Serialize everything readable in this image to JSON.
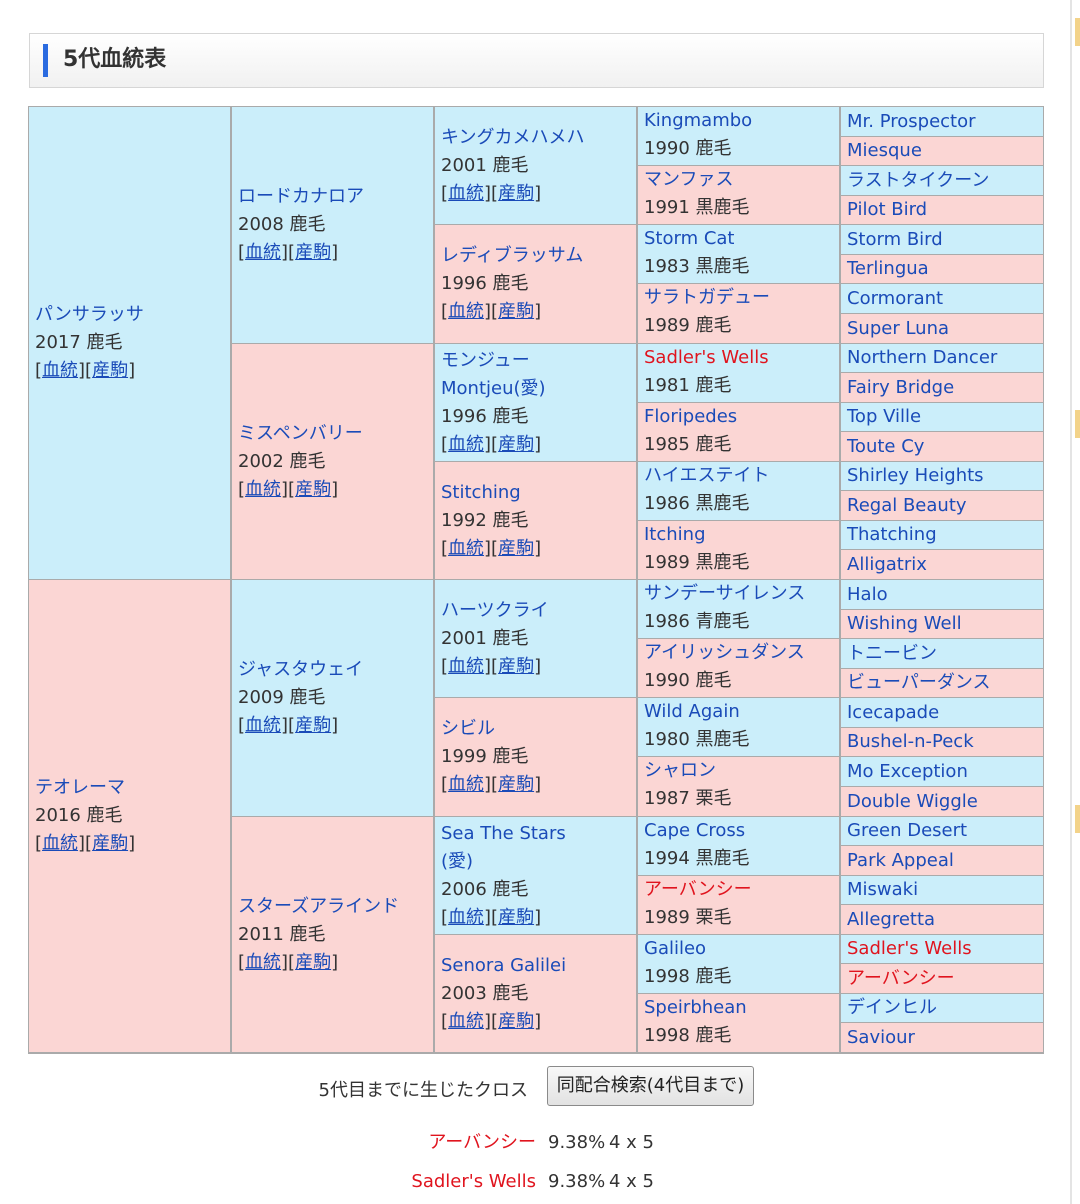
{
  "section": {
    "title": "5代血統表"
  },
  "links": {
    "pedigree": "血統",
    "offspring": "産駒"
  },
  "pedigree": {
    "gen1": [
      {
        "name": "パンサラッサ",
        "year": "2017",
        "color": "鹿毛",
        "sex": "m"
      },
      {
        "name": "テオレーマ",
        "year": "2016",
        "color": "鹿毛",
        "sex": "f"
      }
    ],
    "gen2": [
      {
        "name": "ロードカナロア",
        "year": "2008",
        "color": "鹿毛",
        "sex": "m"
      },
      {
        "name": "ミスペンバリー",
        "year": "2002",
        "color": "鹿毛",
        "sex": "f"
      },
      {
        "name": "ジャスタウェイ",
        "year": "2009",
        "color": "鹿毛",
        "sex": "m"
      },
      {
        "name": "スターズアラインド",
        "year": "2011",
        "color": "鹿毛",
        "sex": "f"
      }
    ],
    "gen3": [
      {
        "name": "キングカメハメハ",
        "year": "2001",
        "color": "鹿毛",
        "sex": "m"
      },
      {
        "name": "レディブラッサム",
        "year": "1996",
        "color": "鹿毛",
        "sex": "f"
      },
      {
        "name": "モンジュー",
        "name2": "Montjeu(愛)",
        "year": "1996",
        "color": "鹿毛",
        "sex": "m"
      },
      {
        "name": "Stitching",
        "year": "1992",
        "color": "鹿毛",
        "sex": "f"
      },
      {
        "name": "ハーツクライ",
        "year": "2001",
        "color": "鹿毛",
        "sex": "m"
      },
      {
        "name": "シビル",
        "year": "1999",
        "color": "鹿毛",
        "sex": "f"
      },
      {
        "name": "Sea The Stars",
        "name2": "(愛)",
        "year": "2006",
        "color": "鹿毛",
        "sex": "m"
      },
      {
        "name": "Senora Galilei",
        "year": "2003",
        "color": "鹿毛",
        "sex": "f"
      }
    ],
    "gen4": [
      {
        "name": "Kingmambo",
        "year": "1990",
        "color": "鹿毛",
        "sex": "m"
      },
      {
        "name": "マンファス",
        "year": "1991",
        "color": "黒鹿毛",
        "sex": "f"
      },
      {
        "name": "Storm Cat",
        "year": "1983",
        "color": "黒鹿毛",
        "sex": "m"
      },
      {
        "name": "サラトガデュー",
        "year": "1989",
        "color": "鹿毛",
        "sex": "f"
      },
      {
        "name": "Sadler's Wells",
        "year": "1981",
        "color": "鹿毛",
        "sex": "m",
        "cross": true
      },
      {
        "name": "Floripedes",
        "year": "1985",
        "color": "鹿毛",
        "sex": "f"
      },
      {
        "name": "ハイエステイト",
        "year": "1986",
        "color": "黒鹿毛",
        "sex": "m"
      },
      {
        "name": "Itching",
        "year": "1989",
        "color": "黒鹿毛",
        "sex": "f"
      },
      {
        "name": "サンデーサイレンス",
        "year": "1986",
        "color": "青鹿毛",
        "sex": "m"
      },
      {
        "name": "アイリッシュダンス",
        "year": "1990",
        "color": "鹿毛",
        "sex": "f"
      },
      {
        "name": "Wild Again",
        "year": "1980",
        "color": "黒鹿毛",
        "sex": "m"
      },
      {
        "name": "シャロン",
        "year": "1987",
        "color": "栗毛",
        "sex": "f"
      },
      {
        "name": "Cape Cross",
        "year": "1994",
        "color": "黒鹿毛",
        "sex": "m"
      },
      {
        "name": "アーバンシー",
        "year": "1989",
        "color": "栗毛",
        "sex": "f",
        "cross": true
      },
      {
        "name": "Galileo",
        "year": "1998",
        "color": "鹿毛",
        "sex": "m"
      },
      {
        "name": "Speirbhean",
        "year": "1998",
        "color": "鹿毛",
        "sex": "f"
      }
    ],
    "gen5": [
      {
        "name": "Mr. Prospector",
        "sex": "m"
      },
      {
        "name": "Miesque",
        "sex": "f"
      },
      {
        "name": "ラストタイクーン",
        "sex": "m"
      },
      {
        "name": "Pilot Bird",
        "sex": "f"
      },
      {
        "name": "Storm Bird",
        "sex": "m"
      },
      {
        "name": "Terlingua",
        "sex": "f"
      },
      {
        "name": "Cormorant",
        "sex": "m"
      },
      {
        "name": "Super Luna",
        "sex": "f"
      },
      {
        "name": "Northern Dancer",
        "sex": "m"
      },
      {
        "name": "Fairy Bridge",
        "sex": "f"
      },
      {
        "name": "Top Ville",
        "sex": "m"
      },
      {
        "name": "Toute Cy",
        "sex": "f"
      },
      {
        "name": "Shirley Heights",
        "sex": "m"
      },
      {
        "name": "Regal Beauty",
        "sex": "f"
      },
      {
        "name": "Thatching",
        "sex": "m"
      },
      {
        "name": "Alligatrix",
        "sex": "f"
      },
      {
        "name": "Halo",
        "sex": "m"
      },
      {
        "name": "Wishing Well",
        "sex": "f"
      },
      {
        "name": "トニービン",
        "sex": "m"
      },
      {
        "name": "ビューパーダンス",
        "sex": "f"
      },
      {
        "name": "Icecapade",
        "sex": "m"
      },
      {
        "name": "Bushel-n-Peck",
        "sex": "f"
      },
      {
        "name": "Mo Exception",
        "sex": "m"
      },
      {
        "name": "Double Wiggle",
        "sex": "f"
      },
      {
        "name": "Green Desert",
        "sex": "m"
      },
      {
        "name": "Park Appeal",
        "sex": "f"
      },
      {
        "name": "Miswaki",
        "sex": "m"
      },
      {
        "name": "Allegretta",
        "sex": "f"
      },
      {
        "name": "Sadler's Wells",
        "sex": "m",
        "cross": true
      },
      {
        "name": "アーバンシー",
        "sex": "f",
        "cross": true
      },
      {
        "name": "デインヒル",
        "sex": "m"
      },
      {
        "name": "Saviour",
        "sex": "f"
      }
    ]
  },
  "crosses": {
    "label": "5代目までに生じたクロス",
    "button": "同配合検索(4代目まで)",
    "items": [
      {
        "name": "アーバンシー",
        "pct": "9.38%",
        "gen": "4 x 5"
      },
      {
        "name": "Sadler's Wells",
        "pct": "9.38%",
        "gen": "4 x 5"
      }
    ]
  },
  "colors": {
    "male_bg": "#cbeefa",
    "female_bg": "#fbd6d4",
    "link": "#1a4bb8",
    "cross": "#e0141e"
  }
}
